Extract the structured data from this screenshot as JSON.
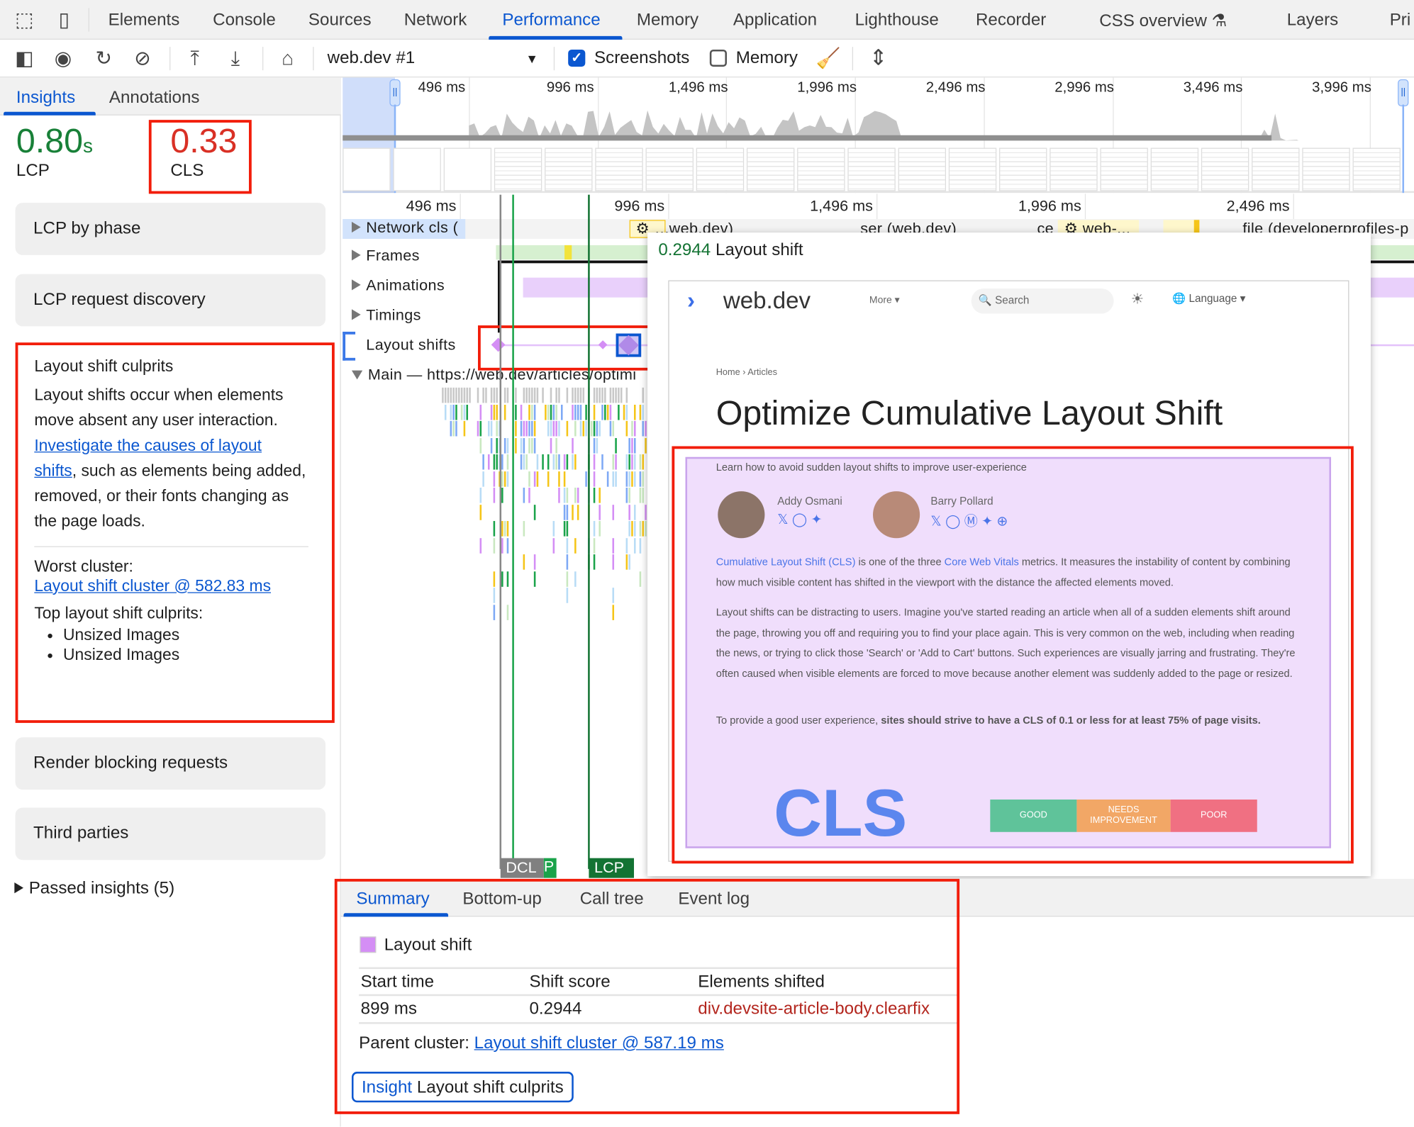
{
  "devtools_tabs": [
    {
      "label": "Elements"
    },
    {
      "label": "Console"
    },
    {
      "label": "Sources"
    },
    {
      "label": "Network"
    },
    {
      "label": "Performance",
      "active": true
    },
    {
      "label": "Memory"
    },
    {
      "label": "Application"
    },
    {
      "label": "Lighthouse"
    },
    {
      "label": "Recorder"
    },
    {
      "label": "CSS overview"
    },
    {
      "label": "Layers"
    },
    {
      "label": "Pri"
    }
  ],
  "toolbar": {
    "recording_select": "web.dev #1",
    "screenshots_label": "Screenshots",
    "screenshots_checked": true,
    "memory_label": "Memory",
    "memory_checked": false
  },
  "sidebar": {
    "tabs": [
      {
        "label": "Insights",
        "active": true
      },
      {
        "label": "Annotations"
      }
    ],
    "lcp": {
      "value": "0.80",
      "unit": "s",
      "label": "LCP",
      "color": "#188038"
    },
    "cls": {
      "value": "0.33",
      "label": "CLS",
      "color": "#d93025"
    },
    "insights": [
      {
        "label": "LCP by phase"
      },
      {
        "label": "LCP request discovery"
      },
      {
        "label": "Render blocking requests"
      },
      {
        "label": "Third parties"
      }
    ],
    "culprits": {
      "title": "Layout shift culprits",
      "desc_pre": "Layout shifts occur when elements move absent any user interaction. ",
      "desc_link": "Investigate the causes of layout shifts",
      "desc_post": ", such as elements being added, removed, or their fonts changing as the page loads.",
      "worst_label": "Worst cluster:",
      "worst_link": "Layout shift cluster @ 582.83 ms",
      "top_label": "Top layout shift culprits:",
      "items": [
        "Unsized Images",
        "Unsized Images"
      ]
    },
    "passed": "Passed insights (5)"
  },
  "overview": {
    "ticks": [
      "496 ms",
      "996 ms",
      "1,496 ms",
      "1,996 ms",
      "2,496 ms",
      "2,996 ms",
      "3,496 ms",
      "3,996 ms"
    ]
  },
  "timeline": {
    "ticks": [
      "496 ms",
      "996 ms",
      "1,496 ms",
      "1,996 ms",
      "2,496 ms"
    ],
    "network_label": "Network cls (",
    "network_items": [
      "web.dev)",
      "ser (web.dev)",
      "ce",
      "web-...",
      "file (developerprofiles-p"
    ],
    "tracks": [
      "Frames",
      "Animations",
      "Timings",
      "Layout shifts"
    ],
    "main_label": "Main — https://web.dev/articles/optimi",
    "markers": [
      {
        "label": "DCL",
        "color": "#808080"
      },
      {
        "label": "P",
        "color": "#1aa34a"
      },
      {
        "label": "LCP",
        "color": "#137333"
      }
    ]
  },
  "popover": {
    "score": "0.2944",
    "title": "Layout shift",
    "page": {
      "site": "web.dev",
      "more": "More",
      "search": "Search",
      "language": "Language",
      "breadcrumb": [
        "Home",
        "Articles"
      ],
      "heading": "Optimize Cumulative Layout Shift",
      "subtitle": "Learn how to avoid sudden layout shifts to improve user-experience",
      "authors": [
        "Addy Osmani",
        "Barry Pollard"
      ],
      "p1_link1": "Cumulative Layout Shift (CLS)",
      "p1_mid": " is one of the three ",
      "p1_link2": "Core Web Vitals",
      "p1_post": " metrics. It measures the instability of content by combining how much visible content has shifted in the viewport with the distance the affected elements moved.",
      "p2": "Layout shifts can be distracting to users. Imagine you've started reading an article when all of a sudden elements shift around the page, throwing you off and requiring you to find your place again. This is very common on the web, including when reading the news, or trying to click those 'Search' or 'Add to Cart' buttons. Such experiences are visually jarring and frustrating. They're often caused when visible elements are forced to move because another element was suddenly added to the page or resized.",
      "p3_pre": "To provide a good user experience, ",
      "p3_bold": "sites should strive to have a CLS of 0.1 or less for at least 75% of page visits.",
      "cls_logo": "CLS",
      "scale": [
        {
          "label": "GOOD",
          "color": "#5fc39a"
        },
        {
          "label": "NEEDS IMPROVEMENT",
          "color": "#f2a766"
        },
        {
          "label": "POOR",
          "color": "#f07082"
        }
      ]
    }
  },
  "details": {
    "tabs": [
      {
        "label": "Summary",
        "active": true
      },
      {
        "label": "Bottom-up"
      },
      {
        "label": "Call tree"
      },
      {
        "label": "Event log"
      }
    ],
    "event_title": "Layout shift",
    "event_color": "#d48ef5",
    "columns": [
      "Start time",
      "Shift score",
      "Elements shifted"
    ],
    "row": [
      "899 ms",
      "0.2944",
      "div.devsite-article-body.clearfix"
    ],
    "parent_label": "Parent cluster: ",
    "parent_link": "Layout shift cluster @ 587.19 ms",
    "insight_prefix": "Insight",
    "insight_name": "Layout shift culprits"
  }
}
